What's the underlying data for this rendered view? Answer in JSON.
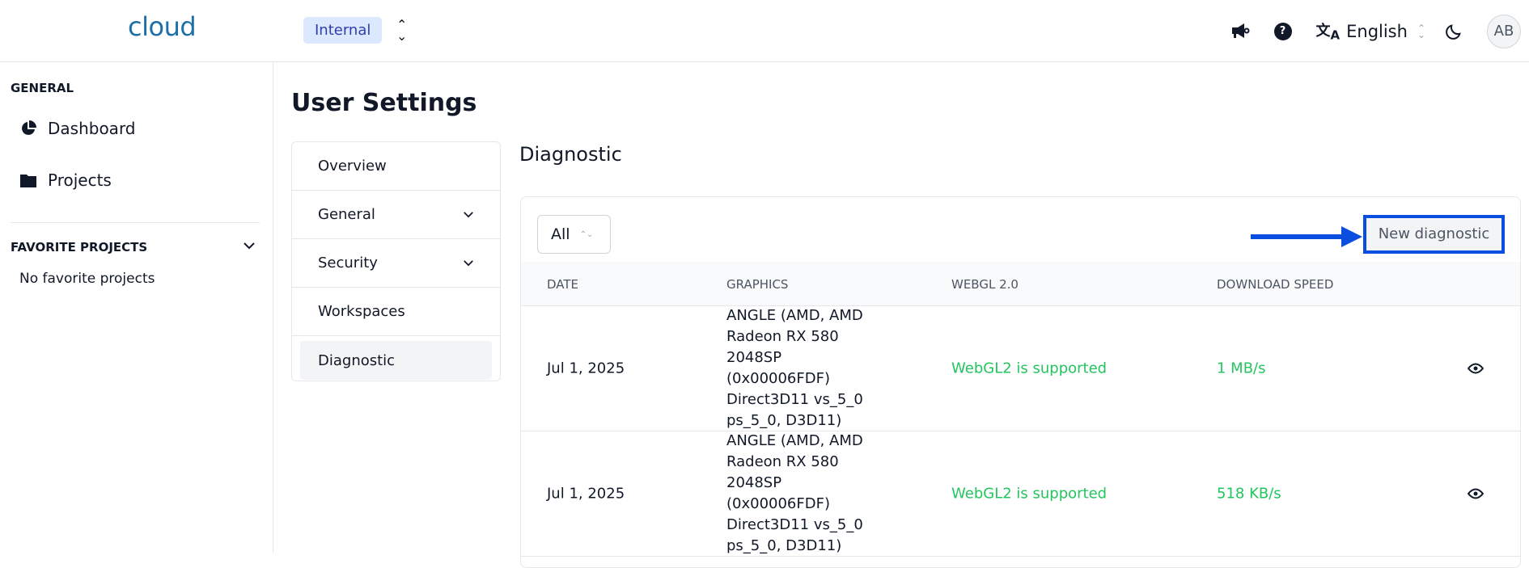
{
  "header": {
    "logo": "cloud",
    "organization": "Internal",
    "language": "English",
    "avatar_initials": "AB",
    "icons": [
      "megaphone-icon",
      "help-icon",
      "translate-icon",
      "moon-icon"
    ]
  },
  "sidebar": {
    "general_heading": "GENERAL",
    "items": [
      {
        "label": "Dashboard",
        "icon": "pie-chart-icon"
      },
      {
        "label": "Projects",
        "icon": "folder-icon"
      }
    ],
    "favorites_heading": "FAVORITE PROJECTS",
    "favorites_empty": "No favorite projects"
  },
  "page": {
    "title": "User Settings"
  },
  "settings_nav": {
    "items": [
      {
        "label": "Overview"
      },
      {
        "label": "General"
      },
      {
        "label": "Security"
      },
      {
        "label": "Workspaces"
      },
      {
        "label": "Diagnostic",
        "active": true
      }
    ]
  },
  "diagnostic": {
    "title": "Diagnostic",
    "filter_value": "All",
    "new_button": "New diagnostic",
    "columns": [
      "DATE",
      "GRAPHICS",
      "WEBGL 2.0",
      "DOWNLOAD SPEED"
    ],
    "rows": [
      {
        "date": "Jul 1, 2025",
        "graphics": "ANGLE (AMD, AMD Radeon RX 580 2048SP (0x00006FDF) Direct3D11 vs_5_0 ps_5_0, D3D11)",
        "webgl": "WebGL2 is supported",
        "download": "1 MB/s"
      },
      {
        "date": "Jul 1, 2025",
        "graphics": "ANGLE (AMD, AMD Radeon RX 580 2048SP (0x00006FDF) Direct3D11 vs_5_0 ps_5_0, D3D11)",
        "webgl": "WebGL2 is supported",
        "download": "518 KB/s"
      }
    ]
  },
  "colors": {
    "brand": "#1d6fa8",
    "success": "#22c55e",
    "highlight": "#0a4ee0"
  }
}
